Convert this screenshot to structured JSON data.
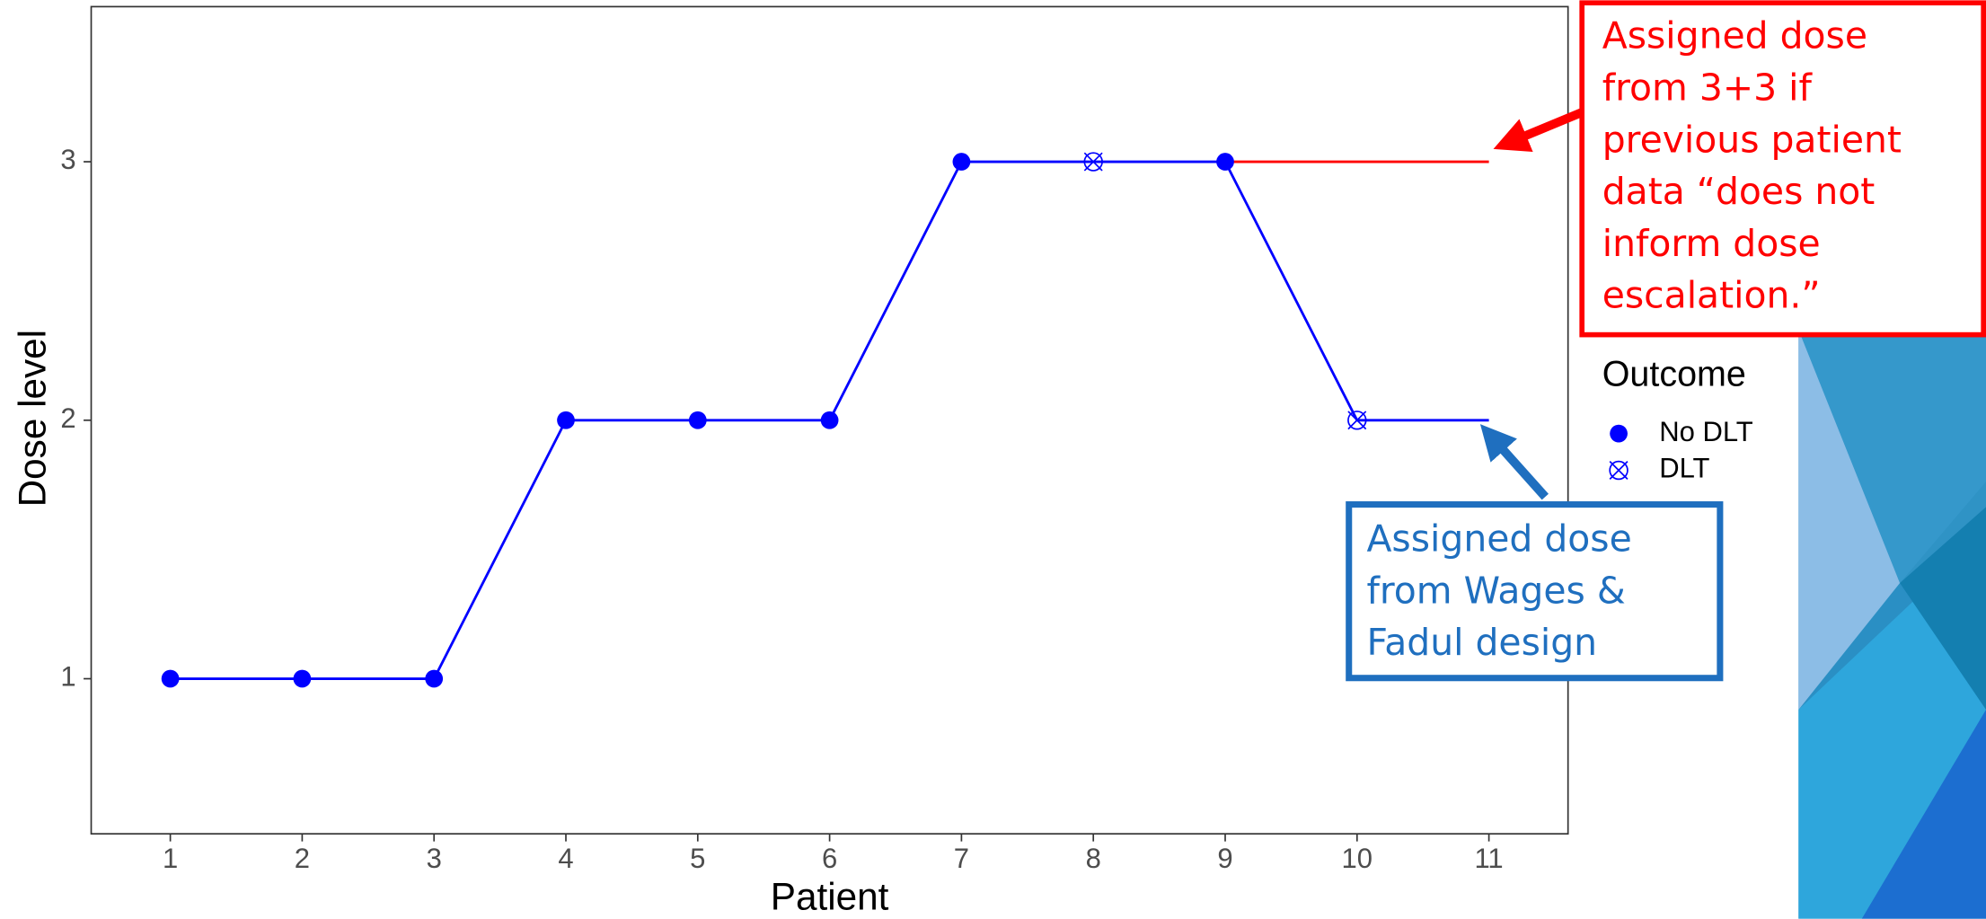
{
  "chart_data": {
    "type": "line",
    "x": [
      1,
      2,
      3,
      4,
      5,
      6,
      7,
      8,
      9,
      10,
      11
    ],
    "series": [
      {
        "color": "#0000ff",
        "values": [
          1,
          1,
          1,
          2,
          2,
          2,
          3,
          3,
          3,
          2,
          2
        ]
      },
      {
        "color": "#ff0000",
        "values": [
          null,
          null,
          null,
          null,
          null,
          null,
          null,
          null,
          3,
          3,
          3
        ]
      }
    ],
    "outcome": [
      0,
      0,
      0,
      0,
      0,
      0,
      0,
      1,
      0,
      1,
      null
    ],
    "xlabel": "Patient",
    "ylabel": "Dose level",
    "xlim": [
      0.4,
      11.6
    ],
    "ylim": [
      0.4,
      3.6
    ],
    "xticks": [
      1,
      2,
      3,
      4,
      5,
      6,
      7,
      8,
      9,
      10,
      11
    ],
    "yticks": [
      1,
      2,
      3
    ],
    "grid": false,
    "legend": {
      "title": "Outcome",
      "entries": [
        "No DLT",
        "DLT"
      ]
    },
    "annotations": [
      {
        "color": "#ff0000",
        "lines": [
          "Assigned dose",
          "from 3+3 if",
          "previous patient",
          "data “does not",
          "inform dose",
          "escalation.”"
        ]
      },
      {
        "color": "#1f6fbf",
        "lines": [
          "Assigned dose",
          "from Wages &",
          "Fadul design"
        ]
      }
    ]
  }
}
